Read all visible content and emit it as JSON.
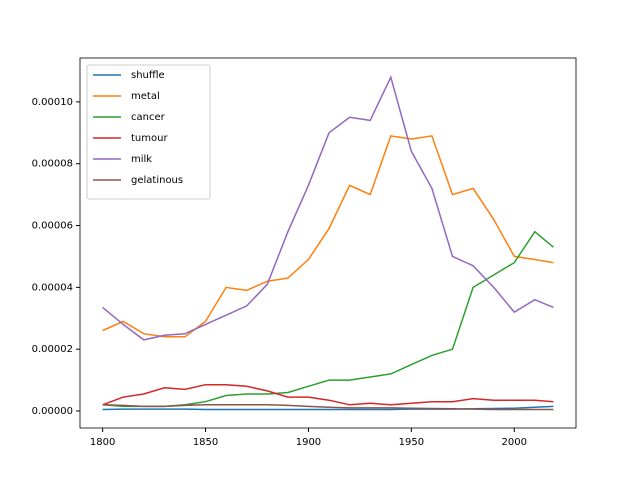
{
  "chart_data": {
    "type": "line",
    "x": [
      1800,
      1810,
      1820,
      1830,
      1840,
      1850,
      1860,
      1870,
      1880,
      1890,
      1900,
      1910,
      1920,
      1930,
      1940,
      1950,
      1960,
      1970,
      1980,
      1990,
      2000,
      2010,
      2019
    ],
    "series": [
      {
        "name": "shuffle",
        "color": "#1f77b4",
        "values": [
          5e-07,
          6e-07,
          6e-07,
          6e-07,
          6e-07,
          5e-07,
          5e-07,
          5e-07,
          5e-07,
          5e-07,
          5e-07,
          5e-07,
          5e-07,
          5e-07,
          5e-07,
          6e-07,
          6e-07,
          6e-07,
          7e-07,
          8e-07,
          9e-07,
          1.2e-06,
          1.5e-06
        ]
      },
      {
        "name": "metal",
        "color": "#ff7f0e",
        "values": [
          2.6e-05,
          2.9e-05,
          2.5e-05,
          2.4e-05,
          2.4e-05,
          2.9e-05,
          4e-05,
          3.9e-05,
          4.2e-05,
          4.3e-05,
          4.9e-05,
          5.9e-05,
          7.3e-05,
          7e-05,
          8.9e-05,
          8.8e-05,
          8.9e-05,
          7e-05,
          7.2e-05,
          6.2e-05,
          5e-05,
          4.9e-05,
          4.8e-05
        ]
      },
      {
        "name": "cancer",
        "color": "#2ca02c",
        "values": [
          2e-06,
          1.5e-06,
          1.5e-06,
          1.5e-06,
          2e-06,
          3e-06,
          5e-06,
          5.5e-06,
          5.5e-06,
          6e-06,
          8e-06,
          1e-05,
          1e-05,
          1.1e-05,
          1.2e-05,
          1.5e-05,
          1.8e-05,
          2e-05,
          4e-05,
          4.4e-05,
          4.8e-05,
          5.8e-05,
          5.3e-05
        ]
      },
      {
        "name": "tumour",
        "color": "#d62728",
        "values": [
          2e-06,
          4.5e-06,
          5.5e-06,
          7.5e-06,
          7e-06,
          8.5e-06,
          8.5e-06,
          8e-06,
          6.5e-06,
          4.5e-06,
          4.5e-06,
          3.5e-06,
          2e-06,
          2.5e-06,
          2e-06,
          2.5e-06,
          3e-06,
          3e-06,
          4e-06,
          3.5e-06,
          3.5e-06,
          3.5e-06,
          3e-06
        ]
      },
      {
        "name": "milk",
        "color": "#9467bd",
        "values": [
          3.35e-05,
          2.8e-05,
          2.3e-05,
          2.45e-05,
          2.5e-05,
          2.8e-05,
          3.1e-05,
          3.4e-05,
          4.1e-05,
          5.8e-05,
          7.3e-05,
          9e-05,
          9.5e-05,
          9.4e-05,
          0.000108,
          8.4e-05,
          7.2e-05,
          5e-05,
          4.7e-05,
          4e-05,
          3.2e-05,
          3.6e-05,
          3.35e-05
        ]
      },
      {
        "name": "gelatinous",
        "color": "#8c564b",
        "values": [
          2e-06,
          1.8e-06,
          1.5e-06,
          1.5e-06,
          1.8e-06,
          2e-06,
          2e-06,
          2e-06,
          2e-06,
          1.8e-06,
          1.5e-06,
          1.2e-06,
          1e-06,
          1e-06,
          1e-06,
          9e-07,
          8e-07,
          7e-07,
          6e-07,
          5e-07,
          5e-07,
          5e-07,
          5e-07
        ]
      }
    ],
    "xlim": [
      1789,
      2030
    ],
    "xticks": [
      1800,
      1850,
      1900,
      1950,
      2000
    ],
    "ylim": [
      -5.5e-06,
      0.0001142
    ],
    "yticks": [
      {
        "value": 0,
        "label": "0.00000"
      },
      {
        "value": 2e-05,
        "label": "0.00002"
      },
      {
        "value": 4e-05,
        "label": "0.00004"
      },
      {
        "value": 6e-05,
        "label": "0.00006"
      },
      {
        "value": 8e-05,
        "label": "0.00008"
      },
      {
        "value": 0.0001,
        "label": "0.00010"
      }
    ],
    "legend": "upper left"
  }
}
